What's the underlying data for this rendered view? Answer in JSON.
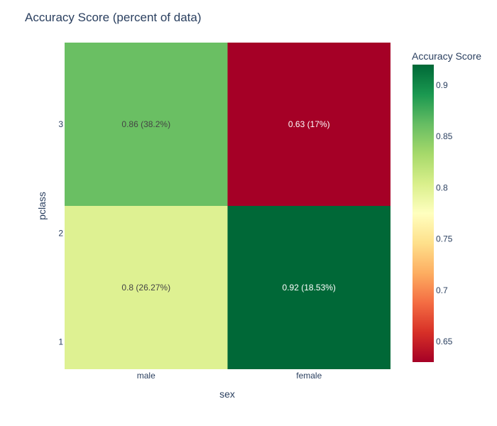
{
  "chart_data": {
    "type": "heatmap",
    "title": "Accuracy Score (percent of data)",
    "xlabel": "sex",
    "ylabel": "pclass",
    "x_categories": [
      "male",
      "female"
    ],
    "y_tick_labels": [
      {
        "label": "3",
        "value": 3
      },
      {
        "label": "2",
        "value": 2
      },
      {
        "label": "1",
        "value": 1
      }
    ],
    "rows": [
      {
        "y": 3,
        "cells": [
          {
            "value": 0.86,
            "label": "0.86 (38.2%)"
          },
          {
            "value": 0.63,
            "label": "0.63 (17%)"
          }
        ]
      },
      {
        "y": 1.5,
        "cells": [
          {
            "value": 0.8,
            "label": "0.8 (26.27%)"
          },
          {
            "value": 0.92,
            "label": "0.92 (18.53%)"
          }
        ]
      }
    ],
    "colorbar": {
      "title": "Accuracy Score",
      "range": [
        0.63,
        0.92
      ],
      "ticks": [
        "0.65",
        "0.7",
        "0.75",
        "0.8",
        "0.85",
        "0.9"
      ],
      "colorscale": [
        "#a50026",
        "#d73027",
        "#f46d43",
        "#fdae61",
        "#fee08b",
        "#ffffbf",
        "#d9ef8b",
        "#a6d96a",
        "#66bd63",
        "#1a9850",
        "#006837"
      ]
    }
  }
}
